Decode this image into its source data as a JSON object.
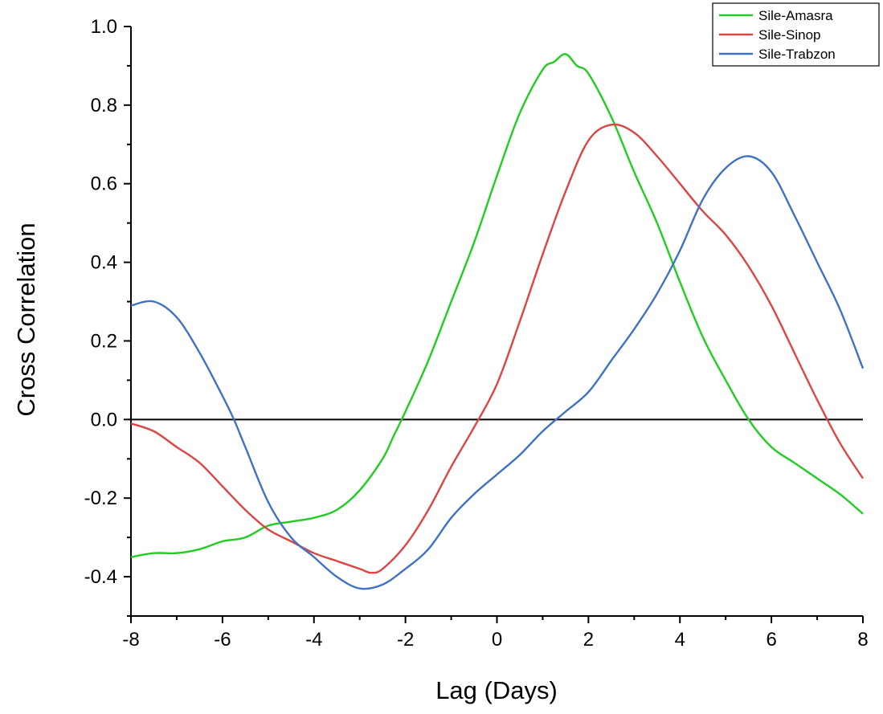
{
  "chart_data": {
    "type": "line",
    "xlabel": "Lag (Days)",
    "ylabel": "Cross Correlation",
    "xlim": [
      -8,
      8
    ],
    "ylim": [
      -0.5,
      1.0
    ],
    "xticks": [
      -8,
      -6,
      -4,
      -2,
      0,
      2,
      4,
      6,
      8
    ],
    "yticks": [
      -0.4,
      -0.2,
      0.0,
      0.2,
      0.4,
      0.6,
      0.8,
      1.0
    ],
    "ytick_labels": [
      "-0.4",
      "-0.2",
      "0.0",
      "0.2",
      "0.4",
      "0.6",
      "0.8",
      "1.0"
    ],
    "zero_line": true,
    "grid": false,
    "legend_position": "top-right",
    "series": [
      {
        "name": "Sile-Amasra",
        "color": "#22cc22",
        "x": [
          -8,
          -7.5,
          -7,
          -6.5,
          -6,
          -5.5,
          -5,
          -4.5,
          -4,
          -3.5,
          -3,
          -2.5,
          -2.25,
          -2,
          -1.5,
          -1,
          -0.5,
          0,
          0.5,
          1,
          1.25,
          1.5,
          1.75,
          2,
          2.5,
          3,
          3.5,
          4,
          4.5,
          5,
          5.5,
          6,
          6.5,
          7,
          7.5,
          8
        ],
        "y": [
          -0.35,
          -0.34,
          -0.34,
          -0.33,
          -0.31,
          -0.3,
          -0.27,
          -0.26,
          -0.25,
          -0.23,
          -0.18,
          -0.1,
          -0.04,
          0.02,
          0.15,
          0.3,
          0.45,
          0.62,
          0.78,
          0.89,
          0.91,
          0.93,
          0.9,
          0.88,
          0.77,
          0.63,
          0.5,
          0.35,
          0.21,
          0.1,
          0.0,
          -0.07,
          -0.11,
          -0.15,
          -0.19,
          -0.24
        ]
      },
      {
        "name": "Sile-Sinop",
        "color": "#dd4444",
        "x": [
          -8,
          -7.5,
          -7,
          -6.5,
          -6,
          -5.5,
          -5,
          -4.5,
          -4,
          -3.5,
          -3,
          -2.75,
          -2.5,
          -2,
          -1.5,
          -1,
          -0.5,
          0,
          0.5,
          1,
          1.5,
          2,
          2.5,
          3,
          3.5,
          4,
          4.5,
          5,
          5.5,
          6,
          6.5,
          7,
          7.5,
          8
        ],
        "y": [
          -0.01,
          -0.03,
          -0.07,
          -0.11,
          -0.17,
          -0.23,
          -0.28,
          -0.31,
          -0.34,
          -0.36,
          -0.38,
          -0.39,
          -0.38,
          -0.32,
          -0.23,
          -0.12,
          -0.02,
          0.09,
          0.25,
          0.42,
          0.58,
          0.71,
          0.75,
          0.73,
          0.67,
          0.6,
          0.53,
          0.47,
          0.39,
          0.29,
          0.17,
          0.05,
          -0.06,
          -0.15
        ]
      },
      {
        "name": "Sile-Trabzon",
        "color": "#3f72c4",
        "x": [
          -8,
          -7.5,
          -7,
          -6.5,
          -6,
          -5.75,
          -5.5,
          -5,
          -4.5,
          -4,
          -3.5,
          -3,
          -2.5,
          -2,
          -1.5,
          -1,
          -0.5,
          0,
          0.5,
          1,
          1.5,
          2,
          2.5,
          3,
          3.5,
          4,
          4.5,
          5,
          5.5,
          6,
          6.5,
          7,
          7.5,
          8
        ],
        "y": [
          0.29,
          0.3,
          0.26,
          0.17,
          0.06,
          0.0,
          -0.07,
          -0.21,
          -0.3,
          -0.35,
          -0.4,
          -0.43,
          -0.42,
          -0.38,
          -0.33,
          -0.25,
          -0.19,
          -0.14,
          -0.09,
          -0.03,
          0.02,
          0.07,
          0.15,
          0.23,
          0.32,
          0.43,
          0.56,
          0.64,
          0.67,
          0.63,
          0.52,
          0.4,
          0.28,
          0.13
        ]
      }
    ]
  }
}
